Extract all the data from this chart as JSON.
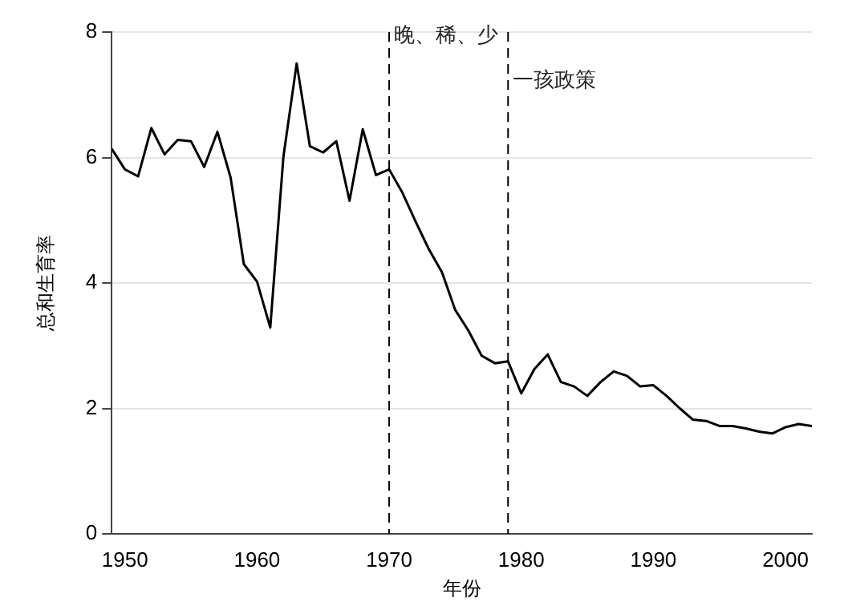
{
  "chart_data": {
    "type": "line",
    "xlabel": "年份",
    "ylabel": "总和生育率",
    "x": [
      1949,
      1950,
      1951,
      1952,
      1953,
      1954,
      1955,
      1956,
      1957,
      1958,
      1959,
      1960,
      1961,
      1962,
      1963,
      1964,
      1965,
      1966,
      1967,
      1968,
      1969,
      1970,
      1971,
      1972,
      1973,
      1974,
      1975,
      1976,
      1977,
      1978,
      1979,
      1980,
      1981,
      1982,
      1983,
      1984,
      1985,
      1986,
      1987,
      1988,
      1989,
      1990,
      1991,
      1992,
      1993,
      1994,
      1995,
      1996,
      1997,
      1998,
      1999,
      2000,
      2001,
      2002
    ],
    "series": [
      {
        "color": "#000000",
        "values": [
          6.14,
          5.81,
          5.7,
          6.47,
          6.05,
          6.28,
          6.26,
          5.85,
          6.41,
          5.68,
          4.3,
          4.02,
          3.29,
          6.02,
          7.5,
          6.18,
          6.08,
          6.26,
          5.31,
          6.45,
          5.72,
          5.81,
          5.44,
          4.98,
          4.54,
          4.17,
          3.57,
          3.24,
          2.84,
          2.72,
          2.75,
          2.24,
          2.63,
          2.86,
          2.42,
          2.35,
          2.2,
          2.42,
          2.59,
          2.52,
          2.35,
          2.37,
          2.2,
          2.0,
          1.82,
          1.8,
          1.72,
          1.72,
          1.68,
          1.63,
          1.6,
          1.7,
          1.75,
          1.72
        ]
      }
    ],
    "xlim": [
      1949,
      2002
    ],
    "xticks": [
      1950,
      1960,
      1970,
      1980,
      1990,
      2000
    ],
    "ylim": [
      0,
      8
    ],
    "yticks": [
      0,
      2,
      4,
      6,
      8
    ],
    "grid": "y",
    "marker": "none",
    "line_style": "solid",
    "legend": false,
    "ref_lines": [
      {
        "axis": "x",
        "value": 1970,
        "label": "晚、稀、少",
        "line_style": "dashed",
        "color": "#000000"
      },
      {
        "axis": "x",
        "value": 1979,
        "label": "一孩政策",
        "line_style": "dashed",
        "color": "#000000"
      }
    ]
  }
}
